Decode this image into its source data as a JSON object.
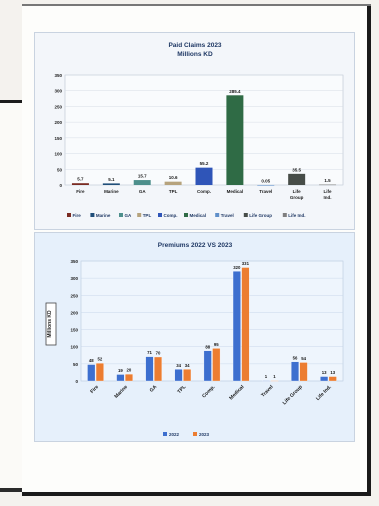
{
  "charts": [
    {
      "title_line1": "Paid Claims 2023",
      "title_line2": "Millions KD"
    },
    {
      "title": "Premiums 2022 VS 2023",
      "ylabel": "Millions KD"
    }
  ],
  "colors": {
    "series_2022": "#3d6fcf",
    "series_2023": "#ec7d31"
  },
  "chart_data": [
    {
      "type": "bar",
      "title": "Paid Claims 2023 Millions KD",
      "categories": [
        "Fire",
        "Marine",
        "GA",
        "TPL",
        "Comp.",
        "Medical",
        "Travel",
        "Life Group",
        "Life Ind."
      ],
      "values": [
        5.7,
        5.1,
        15.7,
        10.6,
        55.2,
        285.4,
        0.05,
        35.5,
        1.5
      ],
      "value_labels": [
        "5.7",
        "5.1",
        "15.7",
        "10.6",
        "55.2",
        "285.4",
        "0.05",
        "35.5",
        "1.5"
      ],
      "bar_colors": [
        "#7a2b22",
        "#1f4e79",
        "#4d8f8c",
        "#b6a37d",
        "#2f55b8",
        "#2f6b45",
        "#5f8fc9",
        "#474d48",
        "#7f7f7f"
      ],
      "legend": [
        "Fire",
        "Marine",
        "GA",
        "TPL",
        "Comp.",
        "Medical",
        "Travel",
        "Life Group",
        "Life Ind."
      ],
      "yticks": [
        0,
        50,
        100,
        150,
        200,
        250,
        300,
        350
      ],
      "ylim": [
        0,
        350
      ]
    },
    {
      "type": "bar",
      "title": "Premiums 2022 VS 2023",
      "ylabel": "Millions KD",
      "categories": [
        "Fire",
        "Marine",
        "GA",
        "TPL",
        "Comp.",
        "Medical",
        "Travel",
        "Life Group",
        "Life Ind."
      ],
      "series": [
        {
          "name": "2022",
          "values": [
            48,
            19,
            71,
            34,
            88,
            320,
            1,
            56,
            13
          ]
        },
        {
          "name": "2023",
          "values": [
            52,
            20,
            70,
            34,
            95,
            331,
            1,
            54,
            13
          ]
        }
      ],
      "value_labels": [
        [
          "48",
          "19",
          "71",
          "34",
          "88",
          "320",
          "1",
          "56",
          "13"
        ],
        [
          "52",
          "20",
          "70",
          "34",
          "95",
          "331",
          "1",
          "54",
          "13"
        ]
      ],
      "yticks": [
        0,
        50,
        100,
        150,
        200,
        250,
        300,
        350
      ],
      "ylim": [
        0,
        350
      ]
    }
  ]
}
